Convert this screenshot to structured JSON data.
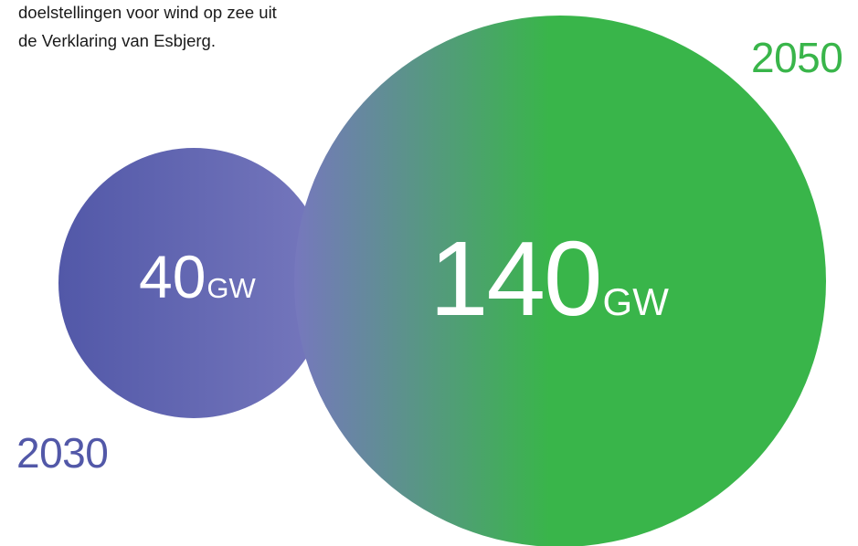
{
  "intro": {
    "line1": "doelstellingen voor wind op zee uit",
    "line2": "de Verklaring van Esbjerg."
  },
  "colors": {
    "purple": "#5258a8",
    "purple_light": "#7678bd",
    "green": "#39b54a",
    "text_dark": "#1a1a1a"
  },
  "chart_data": {
    "type": "bubble",
    "unit": "GW",
    "points": [
      {
        "year": "2030",
        "value": 40,
        "value_label": "40",
        "unit_label": "GW",
        "color": "#5258a8"
      },
      {
        "year": "2050",
        "value": 140,
        "value_label": "140",
        "unit_label": "GW",
        "color": "#39b54a"
      }
    ]
  }
}
